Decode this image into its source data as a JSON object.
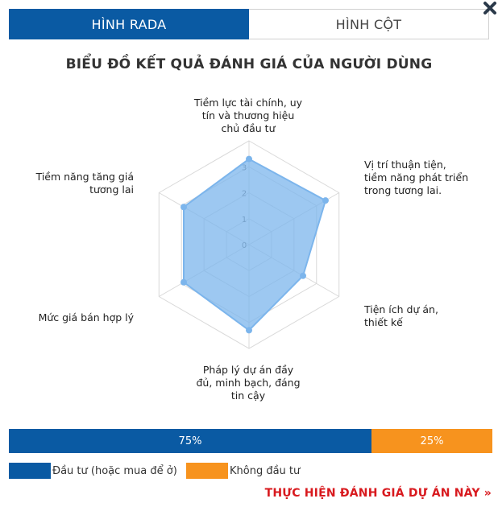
{
  "tabs": [
    {
      "label": "HÌNH RADA",
      "active": true
    },
    {
      "label": "HÌNH CỘT",
      "active": false
    }
  ],
  "chart_data": {
    "type": "radar",
    "title": "BIỂU ĐỒ KẾT QUẢ ĐÁNH GIÁ CỦA NGƯỜI DÙNG",
    "ticks": [
      "0",
      "1",
      "2",
      "3"
    ],
    "rmax": 4,
    "axes": [
      {
        "label": "Tiềm lực tài chính, uy tín và thương hiệu chủ đầu tư",
        "value": 3.3
      },
      {
        "label": "Vị trí thuận tiện, tiềm năng phát triển trong tương lai.",
        "value": 3.4
      },
      {
        "label": "Tiện ích dự án, thiết kế",
        "value": 2.4
      },
      {
        "label": "Pháp lý dự án đầy đủ, minh bạch, đáng tin cậy",
        "value": 3.3
      },
      {
        "label": "Mức giá bán hợp lý",
        "value": 2.9
      },
      {
        "label": "Tiềm năng tăng giá tương lai",
        "value": 2.9
      }
    ],
    "fill_color": "#7cb5ec",
    "grid": true
  },
  "summary_bar": {
    "segments": [
      {
        "label": "75%",
        "value": 75,
        "color": "#0a5aa3"
      },
      {
        "label": "25%",
        "value": 25,
        "color": "#f7931e"
      }
    ]
  },
  "legend": [
    {
      "label": "Đầu tư (hoặc mua để ở)",
      "color": "#0a5aa3"
    },
    {
      "label": "Không đầu tư",
      "color": "#f7931e"
    }
  ],
  "cta": {
    "label": "THỰC HIỆN ĐÁNH GIÁ DỰ ÁN NÀY »"
  },
  "icons": {
    "close": "close-icon"
  }
}
